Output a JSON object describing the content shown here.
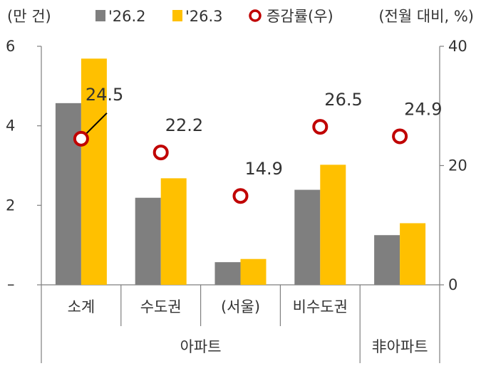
{
  "chart_data": {
    "type": "bar",
    "title": "",
    "left_unit": "(만 건)",
    "right_unit": "(전월 대비, %)",
    "categories": [
      "소계",
      "수도권",
      "(서울)",
      "비수도권",
      ""
    ],
    "groups": [
      {
        "label": "아파트",
        "span": 4
      },
      {
        "label": "非아파트",
        "span": 1
      }
    ],
    "series": [
      {
        "name": "'26.2",
        "type": "bar",
        "axis": "left",
        "color": "#7f7f7f",
        "values": [
          4.57,
          2.19,
          0.57,
          2.39,
          1.25
        ]
      },
      {
        "name": "'26.3",
        "type": "bar",
        "axis": "left",
        "color": "#ffc000",
        "values": [
          5.69,
          2.68,
          0.65,
          3.02,
          1.55
        ]
      },
      {
        "name": "증감률(우)",
        "type": "scatter",
        "axis": "right",
        "color": "#c00000",
        "values": [
          24.5,
          22.2,
          14.9,
          26.5,
          24.9
        ],
        "labels": [
          "24.5",
          "22.2",
          "14.9",
          "26.5",
          "24.9"
        ]
      }
    ],
    "y_left": {
      "min": 0,
      "max": 6,
      "ticks": [
        6,
        4,
        2
      ],
      "zero_label": "–"
    },
    "y_right": {
      "min": 0,
      "max": 40,
      "ticks": [
        40,
        20,
        0
      ]
    },
    "grid": false,
    "legend_position": "top"
  }
}
